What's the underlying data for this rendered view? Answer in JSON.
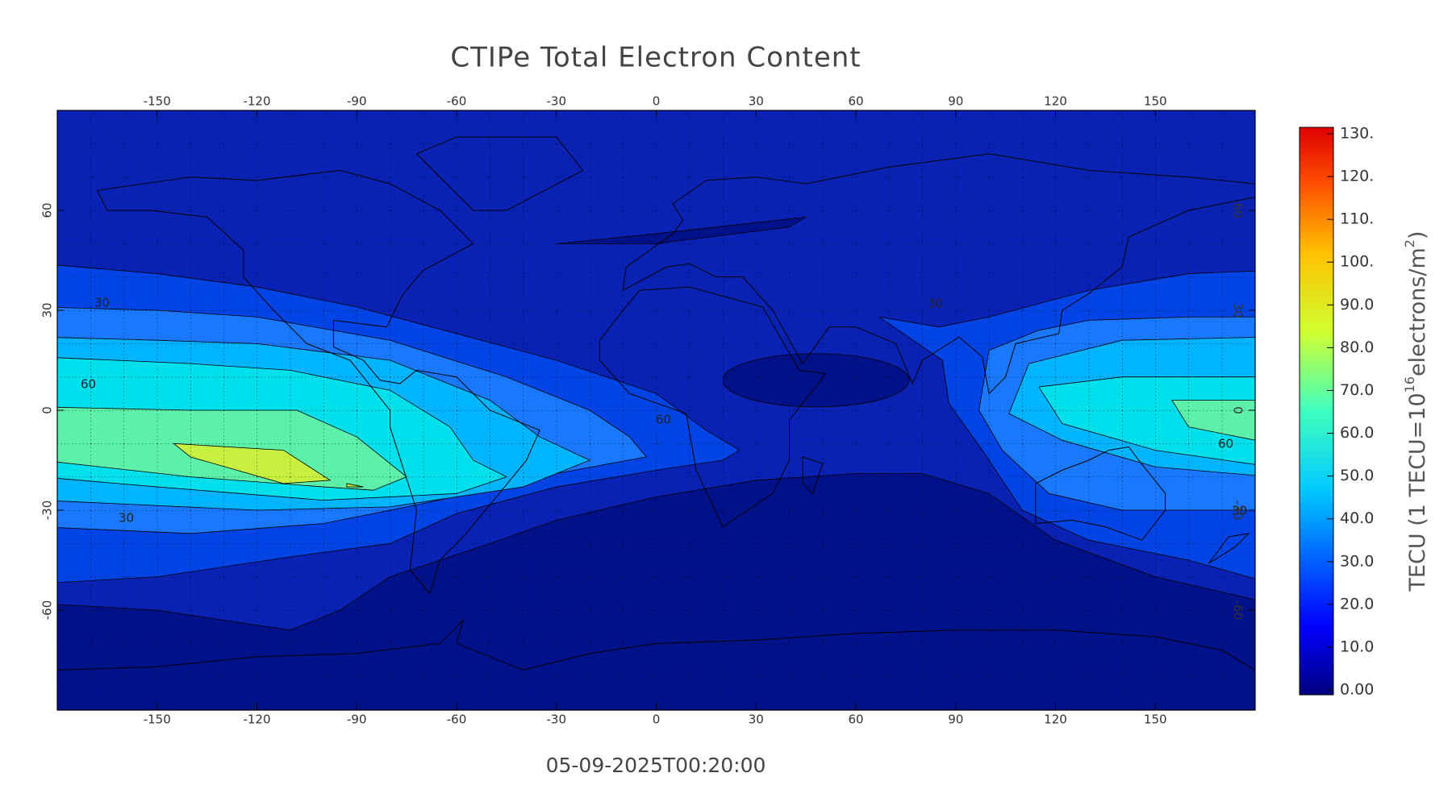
{
  "chart_data": {
    "type": "contour-map",
    "title": "CTIPe Total Electron Content",
    "subtitle": "05-09-2025T00:20:00",
    "xlim": [
      -180,
      180
    ],
    "xticks": [
      -150,
      -120,
      -90,
      -60,
      -30,
      0,
      30,
      60,
      90,
      120,
      150
    ],
    "ylim": [
      -90,
      90
    ],
    "yticks": [
      -60,
      -30,
      0,
      30,
      60
    ],
    "grid": true,
    "colorbar_label": {
      "prefix": "TECU (1 TECU=10",
      "exp1": "16",
      "mid": "electrons/m",
      "exp2": "2",
      "suffix": ")"
    },
    "clim": [
      0,
      130
    ],
    "cticks": [
      {
        "value": 0,
        "label": "0.00"
      },
      {
        "value": 10,
        "label": "10.0"
      },
      {
        "value": 20,
        "label": "20.0"
      },
      {
        "value": 30,
        "label": "30.0"
      },
      {
        "value": 40,
        "label": "40.0"
      },
      {
        "value": 50,
        "label": "50.0"
      },
      {
        "value": 60,
        "label": "60.0"
      },
      {
        "value": 70,
        "label": "70.0"
      },
      {
        "value": 80,
        "label": "80.0"
      },
      {
        "value": 90,
        "label": "90.0"
      },
      {
        "value": 100,
        "label": "100."
      },
      {
        "value": 110,
        "label": "110."
      },
      {
        "value": 120,
        "label": "120."
      },
      {
        "value": 130,
        "label": "130."
      }
    ],
    "contour_labels": [
      "30",
      "60",
      "60",
      "30",
      "30",
      "60",
      "30"
    ]
  }
}
